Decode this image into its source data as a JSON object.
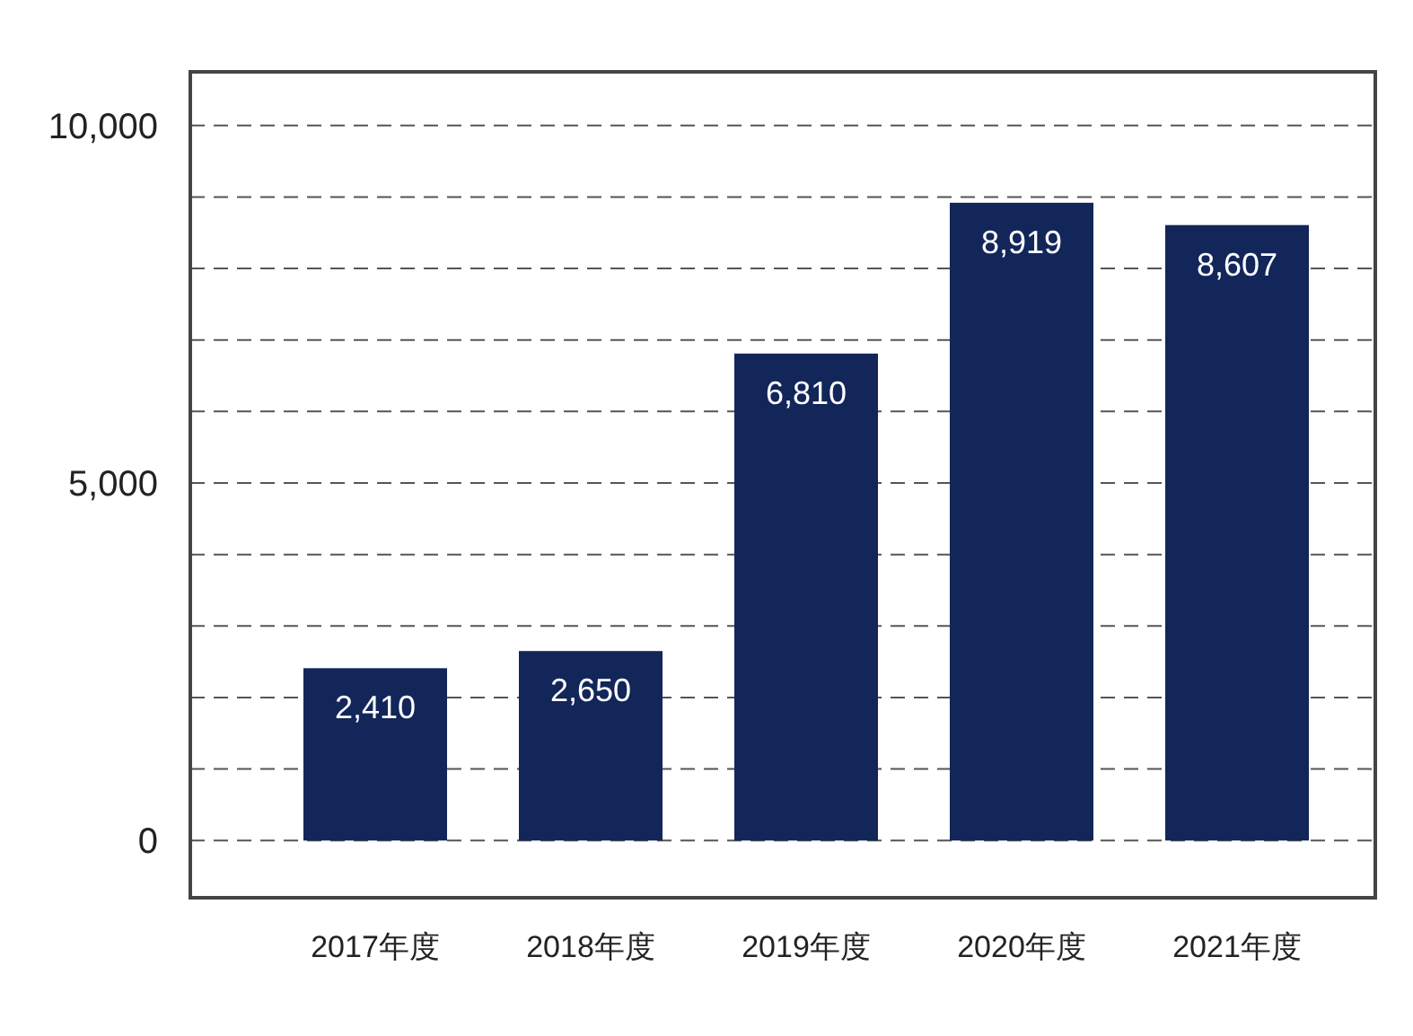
{
  "chart_data": {
    "type": "bar",
    "categories": [
      "2017年度",
      "2018年度",
      "2019年度",
      "2020年度",
      "2021年度"
    ],
    "values": [
      2410,
      2650,
      6810,
      8919,
      8607
    ],
    "color": "#13265a",
    "ylim": [
      -800,
      10750
    ],
    "yticks": [
      0,
      {
        "value": 1000,
        "label": null
      },
      {
        "value": 2000,
        "label": null
      },
      {
        "value": 3000,
        "label": null
      },
      {
        "value": 4000,
        "label": null
      },
      {
        "value": 5000,
        "label": "5,000"
      },
      {
        "value": 6000,
        "label": null
      },
      {
        "value": 7000,
        "label": null
      },
      {
        "value": 8000,
        "label": null
      },
      {
        "value": 9000,
        "label": null
      },
      {
        "value": 10000,
        "label": "10,000"
      }
    ],
    "grid": "y",
    "line_style": "dashed",
    "value_labels": [
      "2,410",
      "2,650",
      "6,810",
      "8,919",
      "8,607"
    ]
  }
}
